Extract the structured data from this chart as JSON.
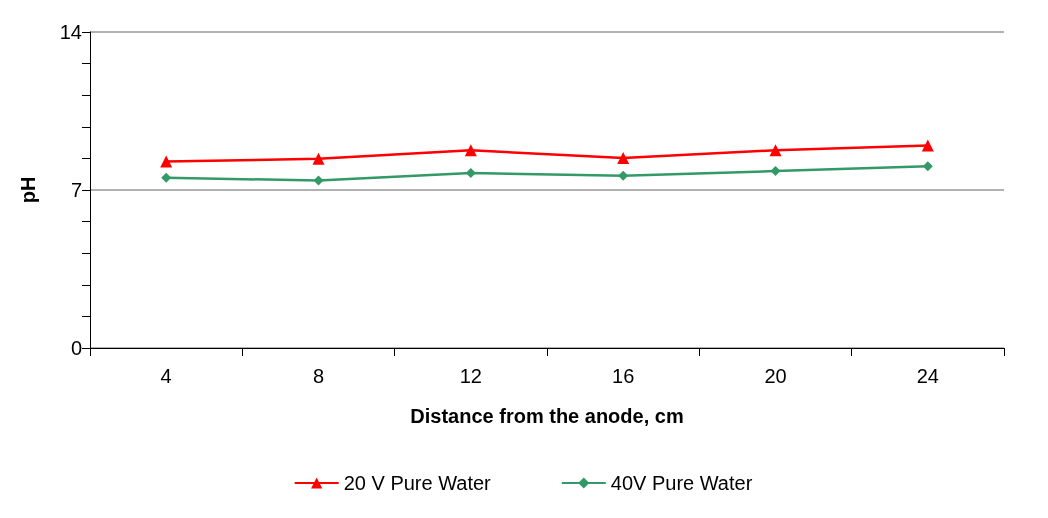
{
  "chart_data": {
    "type": "line",
    "xlabel": "Distance from the anode, cm",
    "ylabel": "pH",
    "categories": [
      "4",
      "8",
      "12",
      "16",
      "20",
      "24"
    ],
    "series": [
      {
        "name": "20 V Pure Water",
        "color": "#ff0000",
        "marker": "triangle",
        "values": [
          8.26,
          8.38,
          8.76,
          8.42,
          8.76,
          8.97
        ]
      },
      {
        "name": "40V Pure Water",
        "color": "#339966",
        "marker": "diamond",
        "values": [
          7.54,
          7.42,
          7.75,
          7.63,
          7.84,
          8.05
        ]
      }
    ],
    "ylim": [
      0,
      14
    ],
    "yticks": [
      0,
      {
        "value": 1.4,
        "label": null
      },
      {
        "value": 2.8,
        "label": null
      },
      {
        "value": 4.2,
        "label": null
      },
      {
        "value": 5.6,
        "label": null
      },
      7,
      {
        "value": 8.4,
        "label": null
      },
      {
        "value": 9.8,
        "label": null
      },
      {
        "value": 11.2,
        "label": null
      },
      {
        "value": 12.6,
        "label": null
      },
      14
    ],
    "grid": "y",
    "legend": "bottom",
    "line_style": "solid"
  }
}
